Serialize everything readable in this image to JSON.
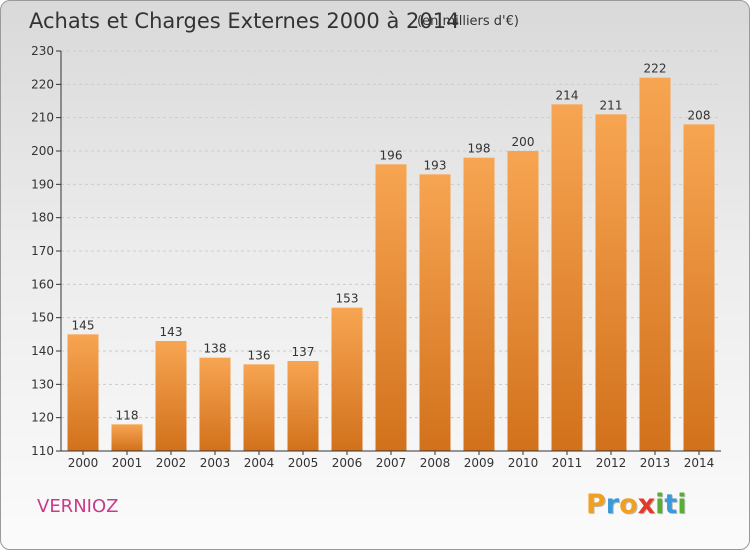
{
  "header": {
    "title": "Achats et Charges Externes 2000 à 2014",
    "subtitle": "(en milliers d'€)"
  },
  "footer": {
    "commune": "VERNIOZ",
    "logo_text": "Proxiti",
    "logo_letters": [
      {
        "ch": "P",
        "color": "#f0a020"
      },
      {
        "ch": "r",
        "color": "#3a9ad9"
      },
      {
        "ch": "o",
        "color": "#f0a020"
      },
      {
        "ch": "x",
        "color": "#e23a2a"
      },
      {
        "ch": "i",
        "color": "#56b030"
      },
      {
        "ch": "t",
        "color": "#3a9ad9"
      },
      {
        "ch": "i",
        "color": "#56b030"
      }
    ]
  },
  "colors": {
    "bar_top": "#f7a552",
    "bar_bottom": "#d2711c",
    "grid": "#cccccc",
    "axis": "#333333",
    "commune": "#c83a8a"
  },
  "chart_data": {
    "type": "bar",
    "title": "Achats et Charges Externes 2000 à 2014",
    "subtitle": "(en milliers d'€)",
    "xlabel": "",
    "ylabel": "",
    "categories": [
      "2000",
      "2001",
      "2002",
      "2003",
      "2004",
      "2005",
      "2006",
      "2007",
      "2008",
      "2009",
      "2010",
      "2011",
      "2012",
      "2013",
      "2014"
    ],
    "values": [
      145,
      118,
      143,
      138,
      136,
      137,
      153,
      196,
      193,
      198,
      200,
      214,
      211,
      222,
      208
    ],
    "ylim": [
      110,
      230
    ],
    "yticks": [
      110,
      120,
      130,
      140,
      150,
      160,
      170,
      180,
      190,
      200,
      210,
      220,
      230
    ],
    "grid": "horizontal dashed",
    "legend": "none"
  }
}
